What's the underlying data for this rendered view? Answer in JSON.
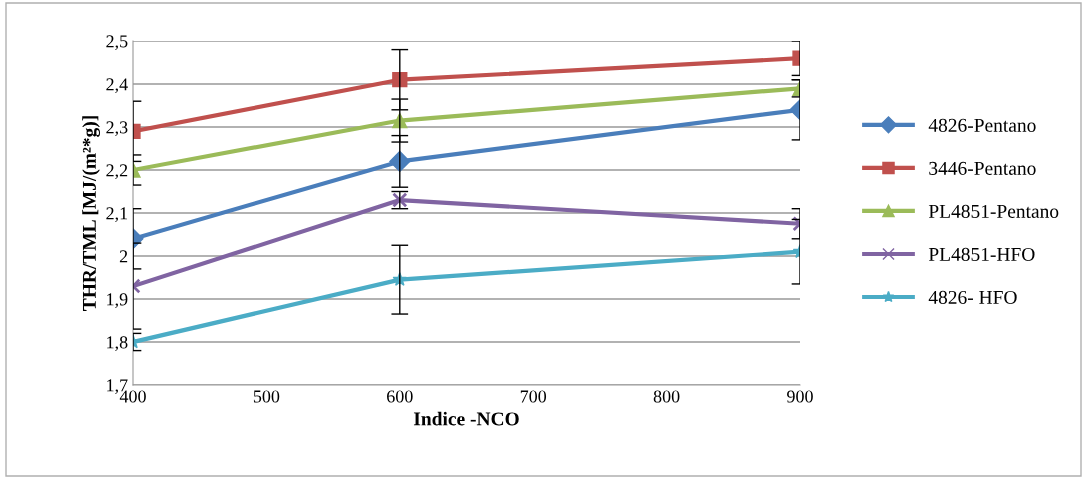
{
  "chart_data": {
    "type": "line",
    "xlabel": "Indice -NCO",
    "ylabel": "THR/TML [MJ/(m²*g)]",
    "x": [
      400,
      600,
      900
    ],
    "xlim": [
      400,
      900
    ],
    "xticks": [
      400,
      500,
      600,
      700,
      800,
      900
    ],
    "ylim": [
      1.7,
      2.5
    ],
    "yticks": [
      {
        "value": 1.7,
        "label": "1,7"
      },
      {
        "value": 1.8,
        "label": "1,8"
      },
      {
        "value": 1.9,
        "label": "1,9"
      },
      {
        "value": 2.0,
        "label": "2"
      },
      {
        "value": 2.1,
        "label": "2,1"
      },
      {
        "value": 2.2,
        "label": "2,2"
      },
      {
        "value": 2.3,
        "label": "2,3"
      },
      {
        "value": 2.4,
        "label": "2,4"
      },
      {
        "value": 2.5,
        "label": "2,5"
      }
    ],
    "grid": "y",
    "legend": "right",
    "series": [
      {
        "name": "4826-Pentano",
        "color": "#4a7ebb",
        "marker": "diamond",
        "values": [
          2.04,
          2.22,
          2.34
        ],
        "errors": [
          0.07,
          0.06,
          0.07
        ]
      },
      {
        "name": "3446-Pentano",
        "color": "#c0504d",
        "marker": "square",
        "values": [
          2.29,
          2.41,
          2.46
        ],
        "errors": [
          0.07,
          0.07,
          0.04
        ]
      },
      {
        "name": "PL4851-Pentano",
        "color": "#9bbb59",
        "marker": "triangle",
        "values": [
          2.2,
          2.315,
          2.39
        ],
        "errors": [
          0.035,
          0.05,
          0.02
        ]
      },
      {
        "name": "PL4851-HFO",
        "color": "#8064a2",
        "marker": "cross",
        "values": [
          1.93,
          2.13,
          2.075
        ],
        "errors": [
          0.1,
          0.02,
          0.035
        ]
      },
      {
        "name": "4826- HFO",
        "color": "#4bacc6",
        "marker": "star",
        "values": [
          1.8,
          1.945,
          2.01
        ],
        "errors": [
          0.02,
          0.08,
          0.075
        ]
      }
    ]
  }
}
